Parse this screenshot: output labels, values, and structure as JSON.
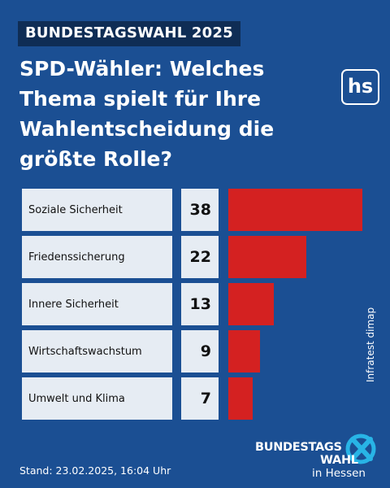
{
  "header": {
    "kicker": "BUNDESTAGSWAHL 2025",
    "title": "SPD-Wähler: Welches Thema spielt für Ihre Wahlentscheidung die größte Rolle?",
    "logo_text": "hs"
  },
  "chart_data": {
    "type": "bar",
    "orientation": "horizontal",
    "title": "SPD-Wähler: Welches Thema spielt für Ihre Wahlentscheidung die größte Rolle?",
    "categories": [
      "Soziale Sicherheit",
      "Friedenssicherung",
      "Innere Sicherheit",
      "Wirtschaftswachstum",
      "Umwelt und Klima"
    ],
    "values": [
      38,
      22,
      13,
      9,
      7
    ],
    "xlim": [
      0,
      38
    ],
    "grid": false,
    "legend": "none"
  },
  "colors": {
    "background": "#1b4f93",
    "bar": "#d42121",
    "cell": "#e6ecf3",
    "kicker_bg": "#0f2d55",
    "accent": "#28b4e6"
  },
  "footer": {
    "source": "Infratest dimap",
    "stand": "Stand: 23.02.2025, 16:04 Uhr",
    "brand_line1": "BUNDESTAGS",
    "brand_line2": "WAHL",
    "brand_line3": "in Hessen"
  }
}
